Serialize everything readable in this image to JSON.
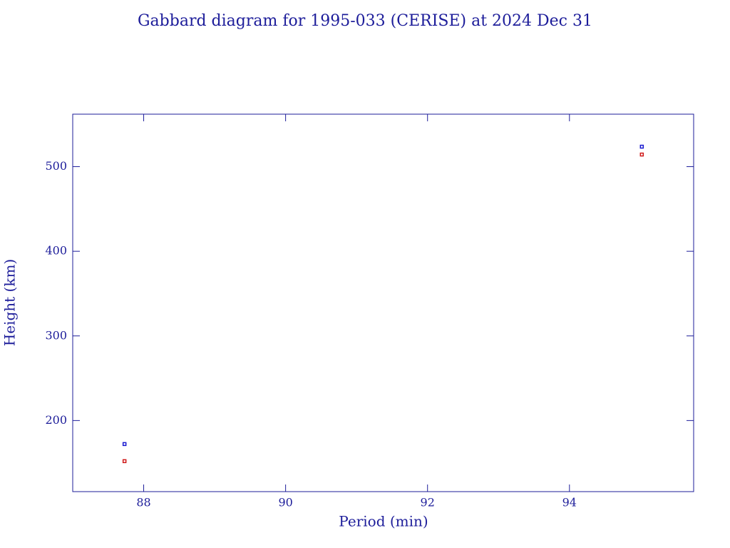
{
  "chart_data": {
    "type": "scatter",
    "title": "Gabbard diagram for 1995-033 (CERISE) at 2024 Dec 31",
    "x_label": "Period (min)",
    "y_label": "Height (km)",
    "x": [
      87.73,
      95.02
    ],
    "series": [
      {
        "color": "#1a1ad0",
        "values": [
          172.2,
          523.6
        ]
      },
      {
        "color": "#d01a1a",
        "values": [
          152.0,
          514.3
        ]
      }
    ],
    "xlim": [
      87.0,
      95.75
    ],
    "xticks": [
      88,
      90,
      92,
      94
    ],
    "ylim": [
      116,
      562
    ],
    "yticks": [
      200,
      300,
      400,
      500
    ],
    "axis_color": "#1d1d9a"
  }
}
